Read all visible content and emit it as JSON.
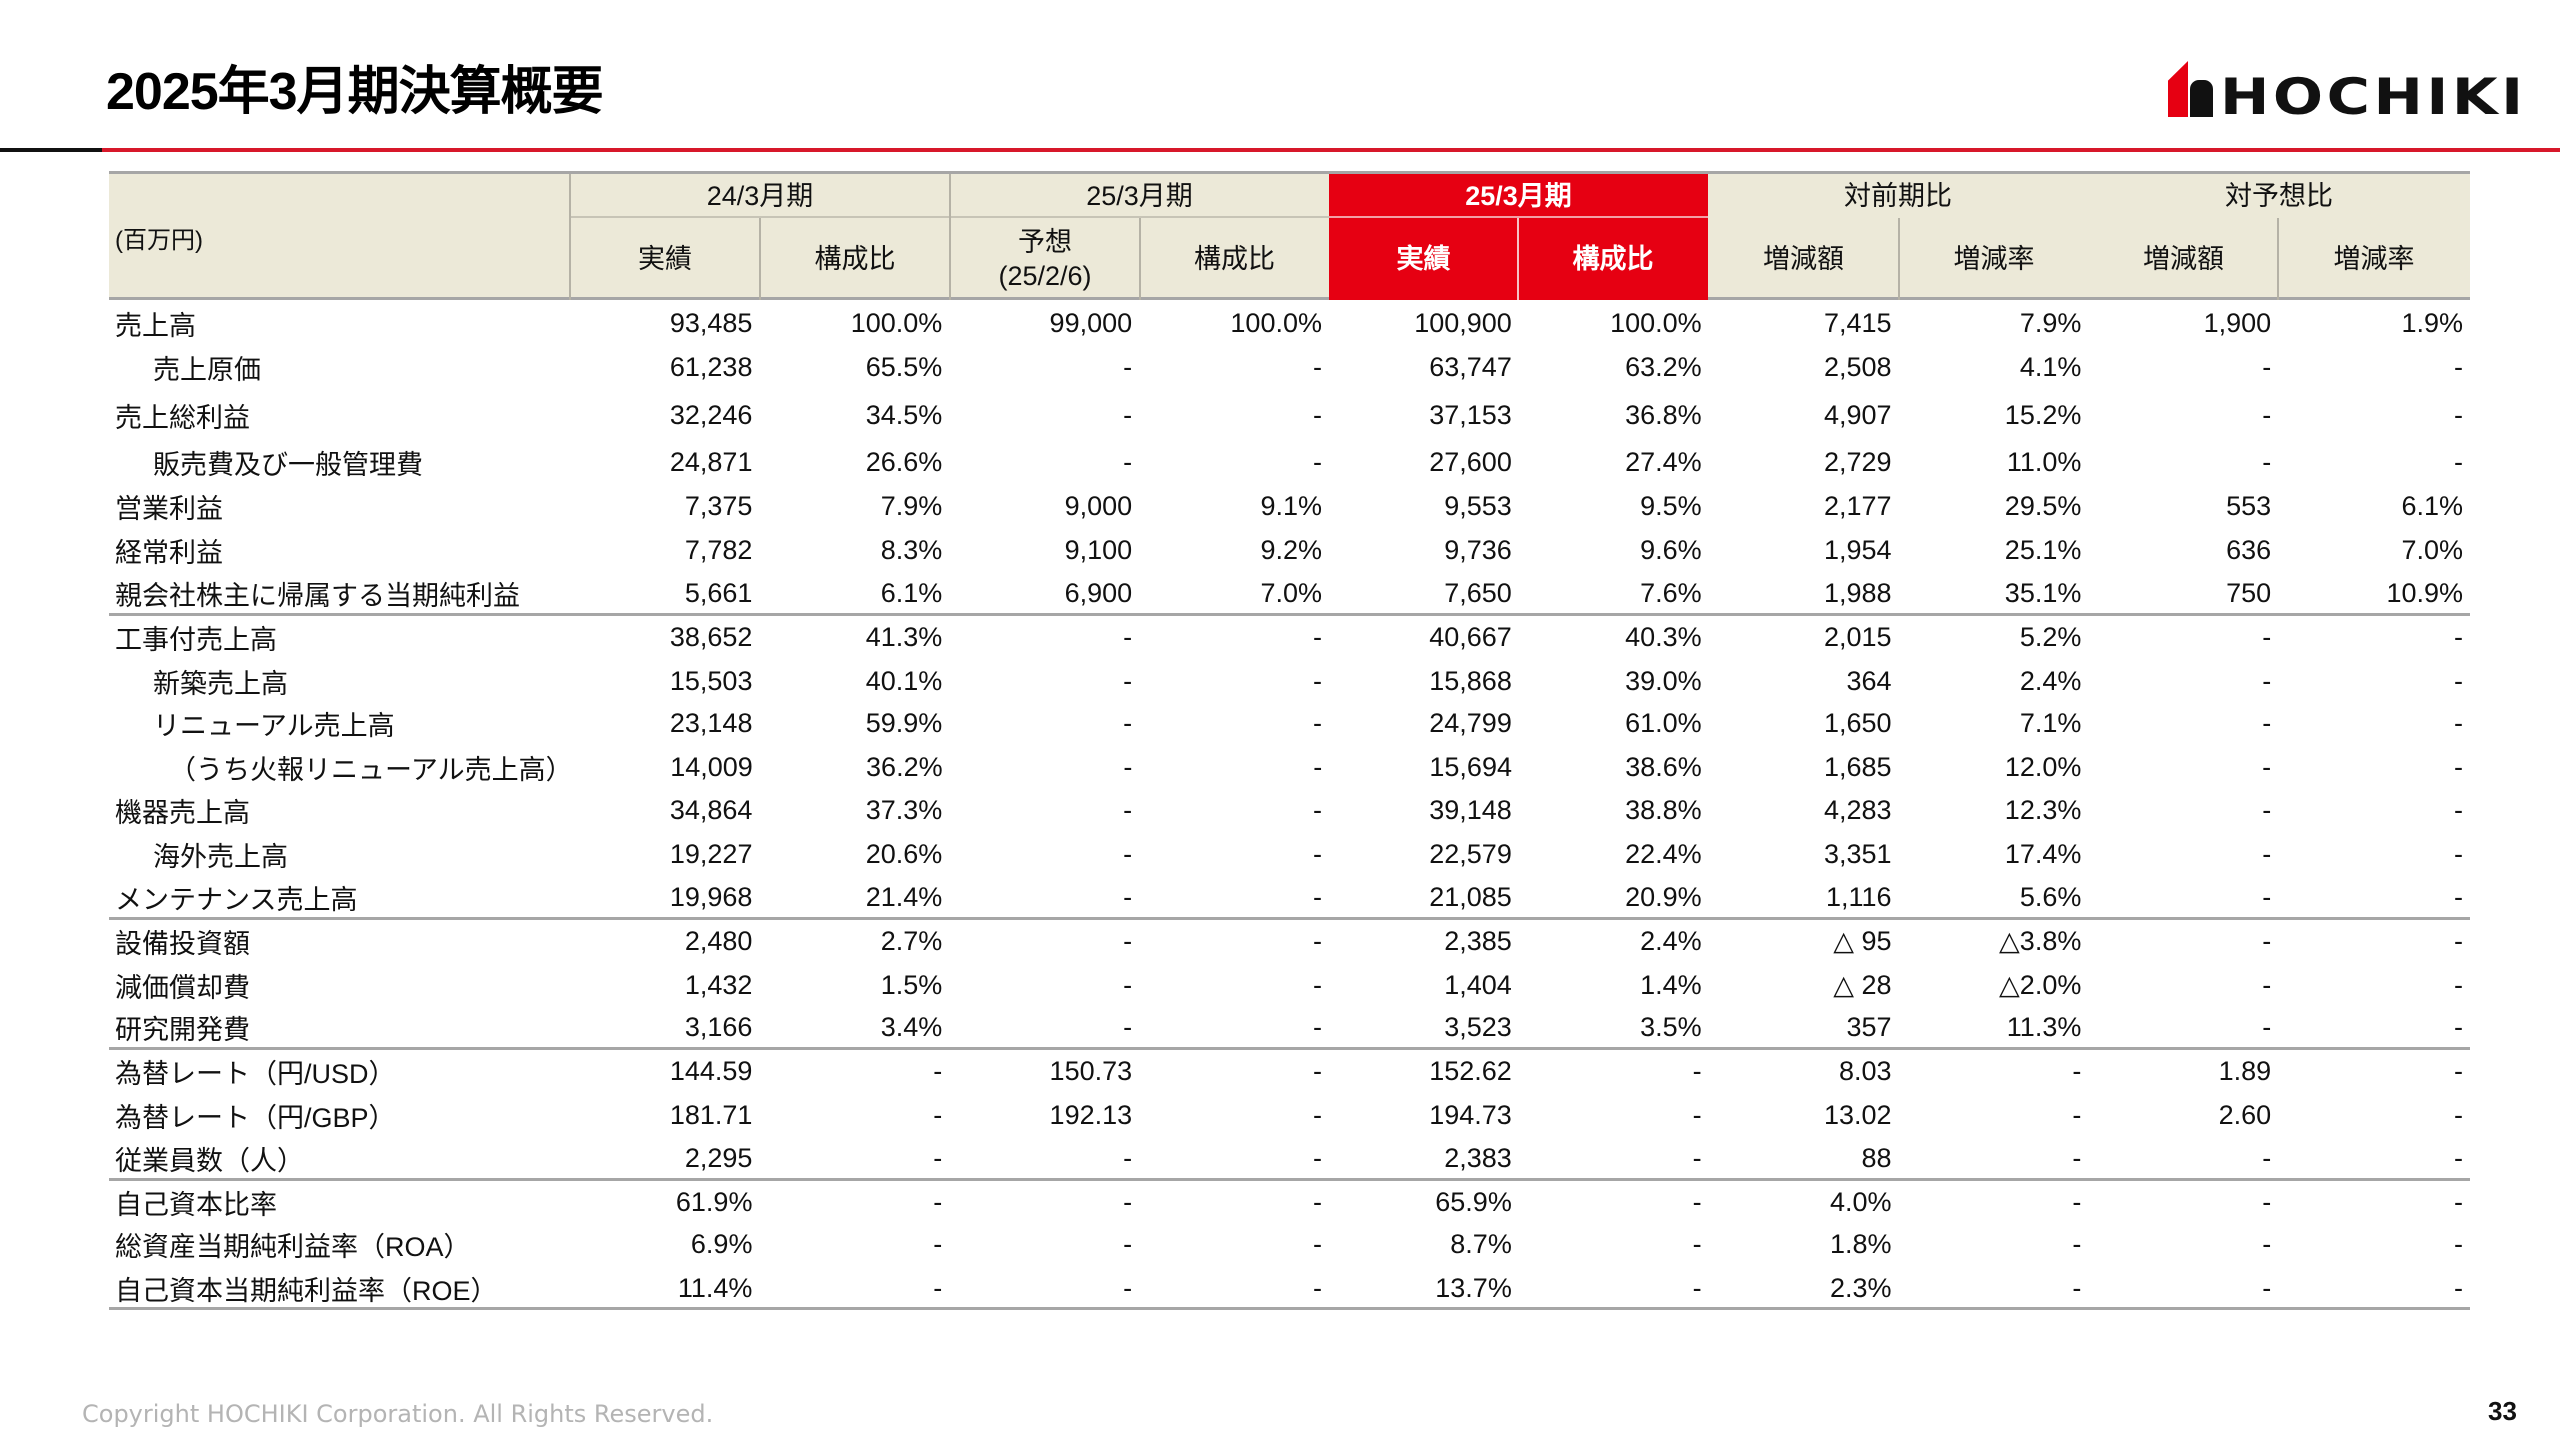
{
  "page": {
    "title": "2025年3月期決算概要",
    "brand": "HOCHIKI",
    "footer": "Copyright HOCHIKI Corporation. All Rights Reserved.",
    "page_number": "33",
    "colors": {
      "accent_red": "#e60012",
      "rule_red": "#d7182a",
      "header_bg": "#ece9d8",
      "border_gray": "#a6a6a6"
    }
  },
  "table": {
    "unit_label": "(百万円)",
    "groups": [
      {
        "label": "24/3月期"
      },
      {
        "label": "25/3月期"
      },
      {
        "label": "25/3月期"
      },
      {
        "label": "対前期比"
      },
      {
        "label": "対予想比"
      }
    ],
    "columns": [
      {
        "label": "実績"
      },
      {
        "label": "構成比"
      },
      {
        "label": "予想",
        "sub": "(25/2/6)"
      },
      {
        "label": "構成比"
      },
      {
        "label": "実績"
      },
      {
        "label": "構成比"
      },
      {
        "label": "増減額"
      },
      {
        "label": "増減率"
      },
      {
        "label": "増減額"
      },
      {
        "label": "増減率"
      }
    ],
    "rows": [
      {
        "label": "売上高",
        "indent": 0,
        "values": [
          "93,485",
          "100.0%",
          "99,000",
          "100.0%",
          "100,900",
          "100.0%",
          "7,415",
          "7.9%",
          "1,900",
          "1.9%"
        ]
      },
      {
        "label": "売上原価",
        "indent": 1,
        "values": [
          "61,238",
          "65.5%",
          "-",
          "-",
          "63,747",
          "63.2%",
          "2,508",
          "4.1%",
          "-",
          "-"
        ]
      },
      {
        "label": "売上総利益",
        "indent": 0,
        "values": [
          "32,246",
          "34.5%",
          "-",
          "-",
          "37,153",
          "36.8%",
          "4,907",
          "15.2%",
          "-",
          "-"
        ]
      },
      {
        "label": "販売費及び一般管理費",
        "indent": 1,
        "values": [
          "24,871",
          "26.6%",
          "-",
          "-",
          "27,600",
          "27.4%",
          "2,729",
          "11.0%",
          "-",
          "-"
        ]
      },
      {
        "label": "営業利益",
        "indent": 0,
        "values": [
          "7,375",
          "7.9%",
          "9,000",
          "9.1%",
          "9,553",
          "9.5%",
          "2,177",
          "29.5%",
          "553",
          "6.1%"
        ]
      },
      {
        "label": "経常利益",
        "indent": 0,
        "values": [
          "7,782",
          "8.3%",
          "9,100",
          "9.2%",
          "9,736",
          "9.6%",
          "1,954",
          "25.1%",
          "636",
          "7.0%"
        ]
      },
      {
        "label": "親会社株主に帰属する当期純利益",
        "indent": 0,
        "values": [
          "5,661",
          "6.1%",
          "6,900",
          "7.0%",
          "7,650",
          "7.6%",
          "1,988",
          "35.1%",
          "750",
          "10.9%"
        ]
      },
      {
        "label": "工事付売上高",
        "indent": 0,
        "values": [
          "38,652",
          "41.3%",
          "-",
          "-",
          "40,667",
          "40.3%",
          "2,015",
          "5.2%",
          "-",
          "-"
        ]
      },
      {
        "label": "新築売上高",
        "indent": 1,
        "values": [
          "15,503",
          "40.1%",
          "-",
          "-",
          "15,868",
          "39.0%",
          "364",
          "2.4%",
          "-",
          "-"
        ]
      },
      {
        "label": "リニューアル売上高",
        "indent": 1,
        "values": [
          "23,148",
          "59.9%",
          "-",
          "-",
          "24,799",
          "61.0%",
          "1,650",
          "7.1%",
          "-",
          "-"
        ]
      },
      {
        "label": "（うち火報リニューアル売上高）",
        "indent": 2,
        "values": [
          "14,009",
          "36.2%",
          "-",
          "-",
          "15,694",
          "38.6%",
          "1,685",
          "12.0%",
          "-",
          "-"
        ]
      },
      {
        "label": "機器売上高",
        "indent": 0,
        "values": [
          "34,864",
          "37.3%",
          "-",
          "-",
          "39,148",
          "38.8%",
          "4,283",
          "12.3%",
          "-",
          "-"
        ]
      },
      {
        "label": "海外売上高",
        "indent": 1,
        "values": [
          "19,227",
          "20.6%",
          "-",
          "-",
          "22,579",
          "22.4%",
          "3,351",
          "17.4%",
          "-",
          "-"
        ]
      },
      {
        "label": "メンテナンス売上高",
        "indent": 0,
        "values": [
          "19,968",
          "21.4%",
          "-",
          "-",
          "21,085",
          "20.9%",
          "1,116",
          "5.6%",
          "-",
          "-"
        ]
      },
      {
        "label": "設備投資額",
        "indent": 0,
        "values": [
          "2,480",
          "2.7%",
          "-",
          "-",
          "2,385",
          "2.4%",
          "△ 95",
          "△3.8%",
          "-",
          "-"
        ]
      },
      {
        "label": "減価償却費",
        "indent": 0,
        "values": [
          "1,432",
          "1.5%",
          "-",
          "-",
          "1,404",
          "1.4%",
          "△ 28",
          "△2.0%",
          "-",
          "-"
        ]
      },
      {
        "label": "研究開発費",
        "indent": 0,
        "values": [
          "3,166",
          "3.4%",
          "-",
          "-",
          "3,523",
          "3.5%",
          "357",
          "11.3%",
          "-",
          "-"
        ]
      },
      {
        "label": "為替レート（円/USD）",
        "indent": 0,
        "values": [
          "144.59",
          "-",
          "150.73",
          "-",
          "152.62",
          "-",
          "8.03",
          "-",
          "1.89",
          "-"
        ]
      },
      {
        "label": "為替レート（円/GBP）",
        "indent": 0,
        "values": [
          "181.71",
          "-",
          "192.13",
          "-",
          "194.73",
          "-",
          "13.02",
          "-",
          "2.60",
          "-"
        ]
      },
      {
        "label": "従業員数（人）",
        "indent": 0,
        "values": [
          "2,295",
          "-",
          "-",
          "-",
          "2,383",
          "-",
          "88",
          "-",
          "-",
          "-"
        ]
      },
      {
        "label": "自己資本比率",
        "indent": 0,
        "values": [
          "61.9%",
          "-",
          "-",
          "-",
          "65.9%",
          "-",
          "4.0%",
          "-",
          "-",
          "-"
        ]
      },
      {
        "label": "総資産当期純利益率（ROA）",
        "indent": 0,
        "values": [
          "6.9%",
          "-",
          "-",
          "-",
          "8.7%",
          "-",
          "1.8%",
          "-",
          "-",
          "-"
        ]
      },
      {
        "label": "自己資本当期純利益率（ROE）",
        "indent": 0,
        "values": [
          "11.4%",
          "-",
          "-",
          "-",
          "13.7%",
          "-",
          "2.3%",
          "-",
          "-",
          "-"
        ]
      }
    ]
  }
}
